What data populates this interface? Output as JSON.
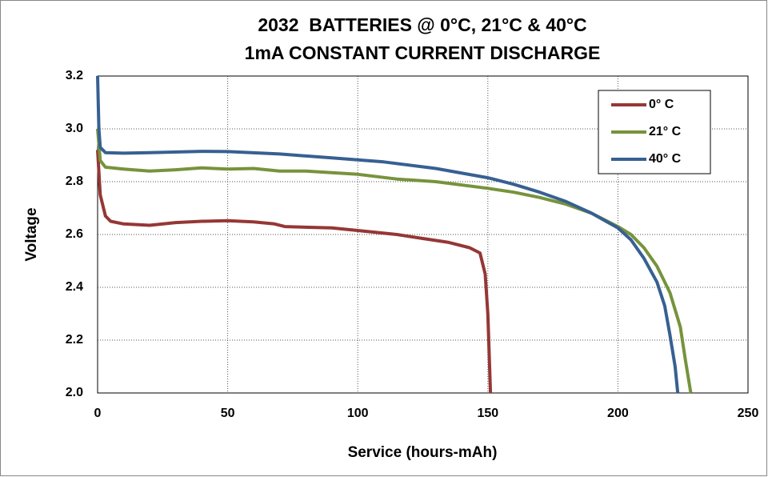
{
  "chart_data": {
    "type": "line",
    "title": "2032  BATTERIES @ 0°C, 21°C & 40°C",
    "subtitle": "1mA CONSTANT CURRENT DISCHARGE",
    "x_label": "Service (hours-mAh)",
    "y_label": "Voltage",
    "xlim": [
      0,
      250
    ],
    "xticks": [
      0,
      50,
      100,
      150,
      200,
      250
    ],
    "ylim": [
      2,
      3.2
    ],
    "yticks": [
      {
        "value": 2,
        "label": "2.0"
      },
      2.2,
      2.4,
      2.6,
      2.8,
      {
        "value": 3,
        "label": "3.0"
      },
      3.2
    ],
    "grid": true,
    "legend": "upper right",
    "series": [
      {
        "name": "0° C",
        "color": "#953735",
        "x": [
          0,
          1,
          3,
          5,
          10,
          20,
          30,
          40,
          50,
          60,
          68,
          72,
          90,
          100,
          115,
          125,
          135,
          143,
          147,
          149,
          150,
          151
        ],
        "values": [
          2.92,
          2.75,
          2.67,
          2.65,
          2.64,
          2.635,
          2.645,
          2.65,
          2.652,
          2.648,
          2.64,
          2.63,
          2.625,
          2.615,
          2.6,
          2.585,
          2.57,
          2.55,
          2.53,
          2.45,
          2.3,
          2.0
        ]
      },
      {
        "name": "21° C",
        "color": "#77933c",
        "x": [
          0,
          1,
          3,
          10,
          20,
          30,
          40,
          50,
          60,
          70,
          80,
          100,
          115,
          130,
          150,
          160,
          170,
          180,
          190,
          200,
          205,
          210,
          215,
          220,
          224,
          226,
          228
        ],
        "values": [
          3.0,
          2.88,
          2.855,
          2.848,
          2.84,
          2.845,
          2.852,
          2.848,
          2.85,
          2.84,
          2.84,
          2.828,
          2.81,
          2.8,
          2.775,
          2.76,
          2.74,
          2.715,
          2.68,
          2.63,
          2.6,
          2.55,
          2.48,
          2.38,
          2.25,
          2.12,
          2.0
        ]
      },
      {
        "name": "40° C",
        "color": "#376092",
        "x": [
          0,
          0.5,
          1,
          3,
          10,
          20,
          40,
          50,
          70,
          90,
          110,
          130,
          150,
          160,
          170,
          180,
          190,
          200,
          205,
          210,
          215,
          218,
          220,
          222,
          223
        ],
        "values": [
          3.2,
          3.0,
          2.93,
          2.91,
          2.908,
          2.91,
          2.915,
          2.914,
          2.905,
          2.89,
          2.875,
          2.85,
          2.815,
          2.79,
          2.76,
          2.725,
          2.68,
          2.625,
          2.58,
          2.51,
          2.42,
          2.33,
          2.22,
          2.1,
          2.0
        ]
      }
    ]
  }
}
